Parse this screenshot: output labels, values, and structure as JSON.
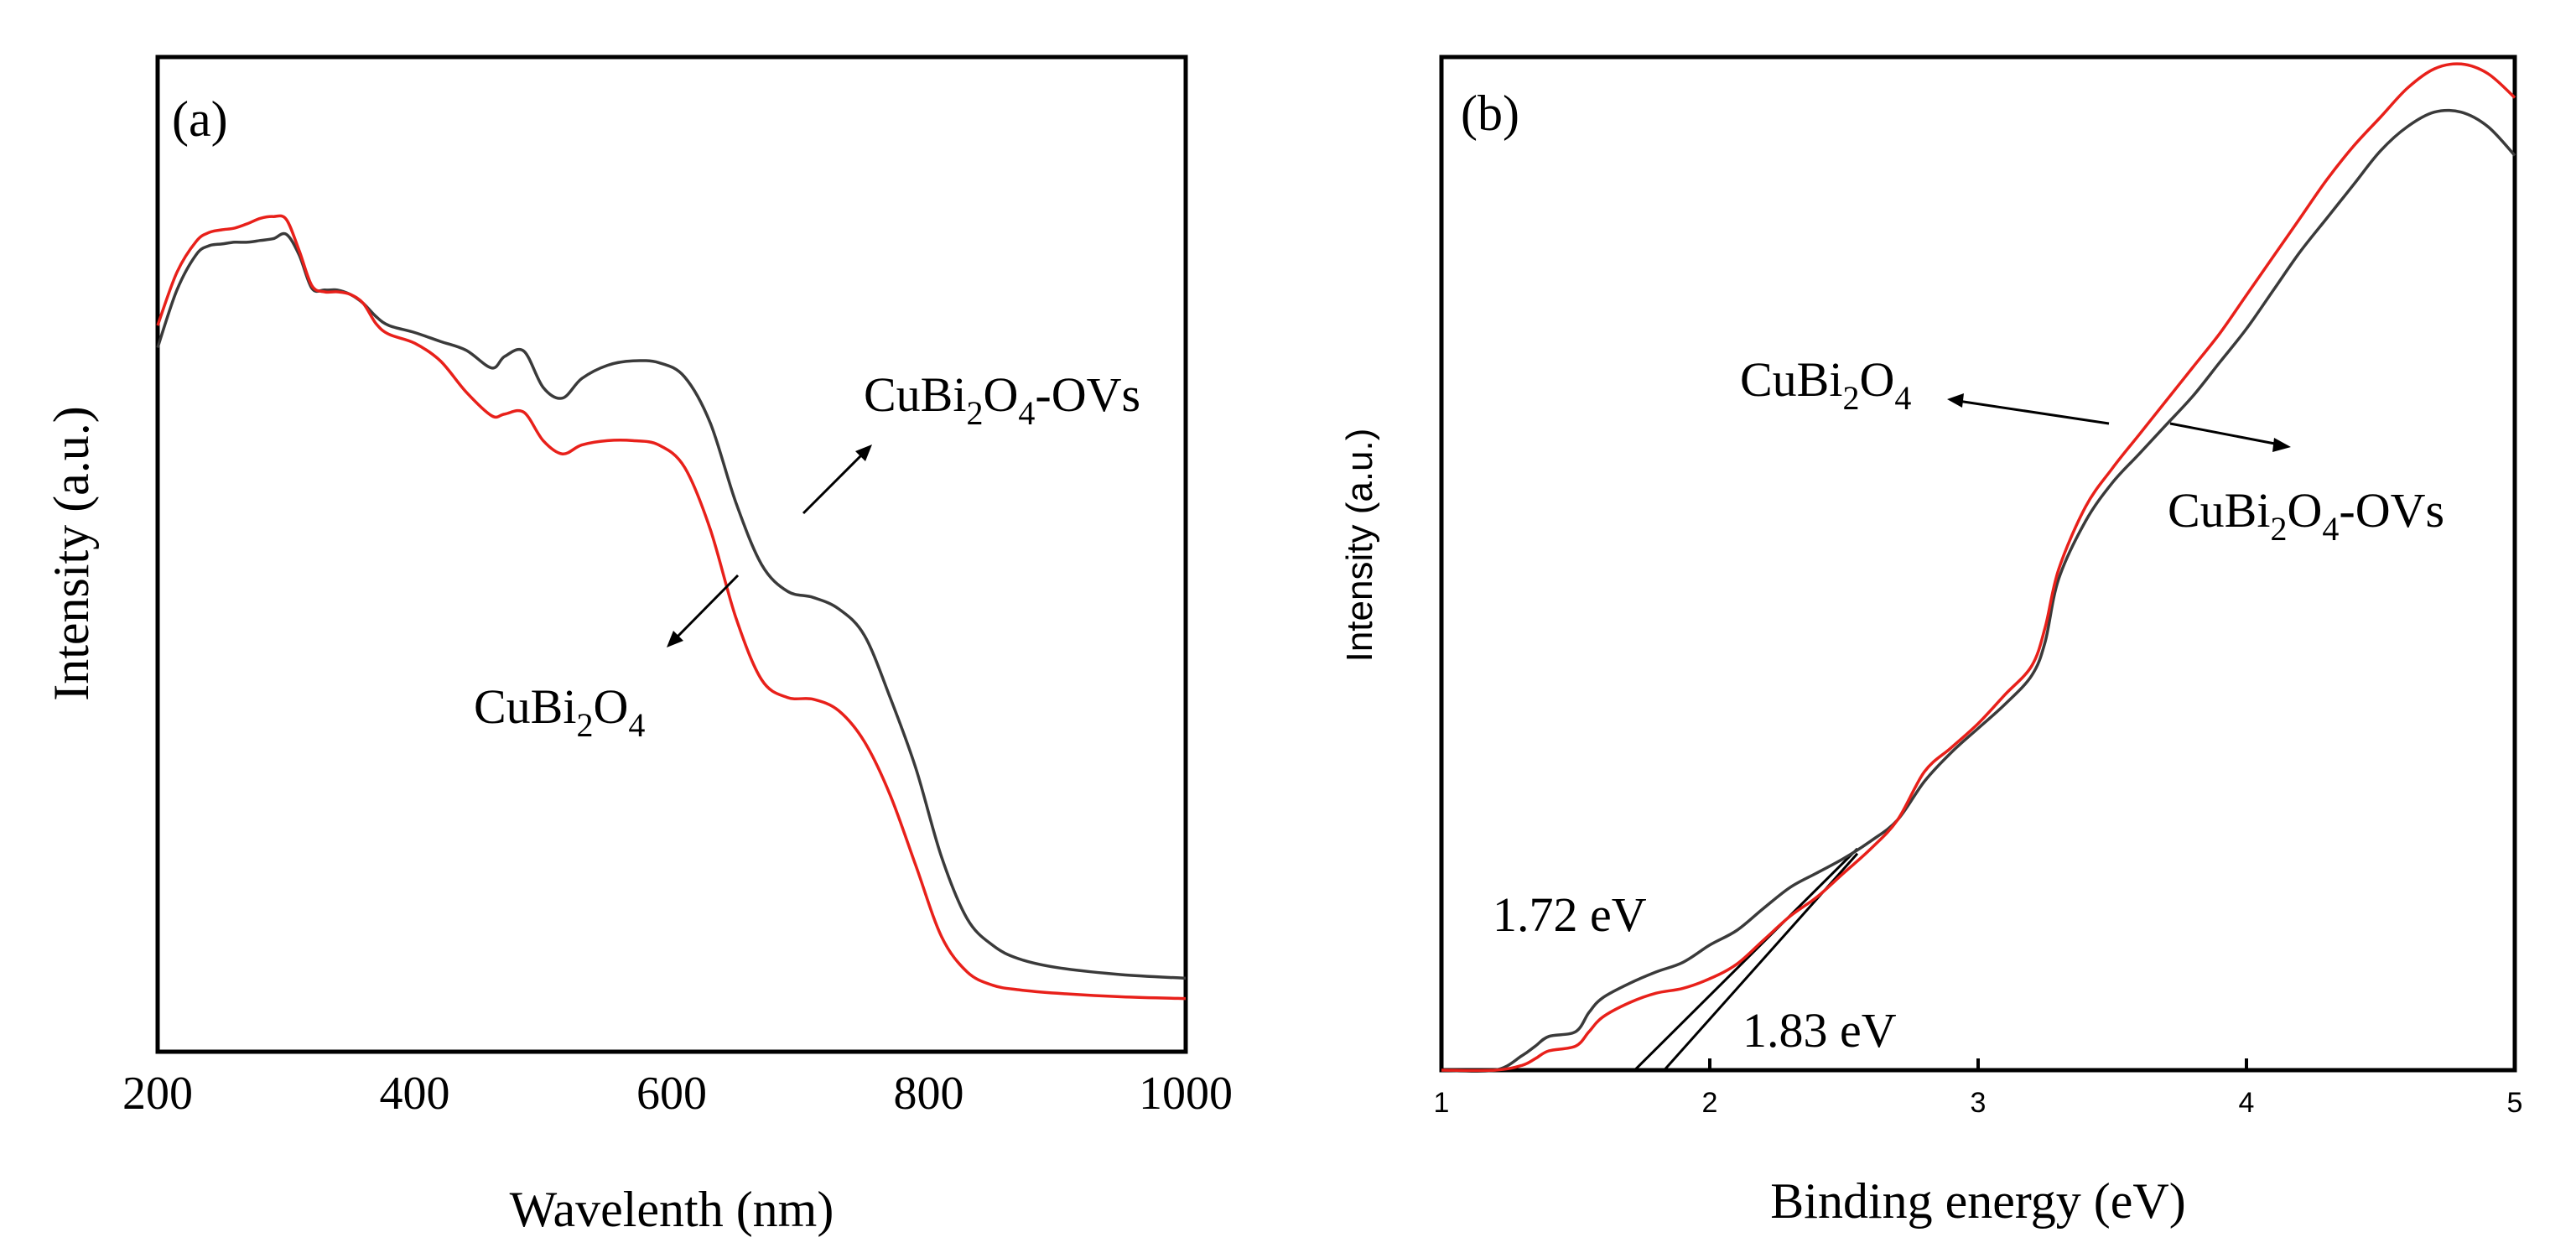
{
  "chart_data": [
    {
      "panel_label": "(a)",
      "type": "line",
      "xlabel": "Wavelenth (nm)",
      "ylabel": "Intensity (a.u.)",
      "xlim": [
        200,
        1000
      ],
      "ylim": [
        0,
        1
      ],
      "xticks": [
        200,
        400,
        600,
        800,
        1000
      ],
      "series": [
        {
          "name": "CuBi2O4-OVs",
          "color": "#3a3a3a",
          "x": [
            200,
            215,
            230,
            240,
            250,
            260,
            270,
            280,
            290,
            300,
            310,
            320,
            330,
            340,
            350,
            360,
            370,
            380,
            400,
            420,
            440,
            460,
            470,
            485,
            500,
            515,
            530,
            550,
            570,
            590,
            610,
            630,
            650,
            670,
            690,
            710,
            730,
            750,
            770,
            790,
            810,
            830,
            850,
            870,
            900,
            950,
            1000
          ],
          "y": [
            0.795,
            0.86,
            0.9,
            0.91,
            0.912,
            0.914,
            0.914,
            0.916,
            0.918,
            0.923,
            0.9,
            0.862,
            0.86,
            0.86,
            0.855,
            0.845,
            0.83,
            0.82,
            0.812,
            0.802,
            0.792,
            0.772,
            0.785,
            0.791,
            0.75,
            0.738,
            0.76,
            0.775,
            0.78,
            0.778,
            0.762,
            0.71,
            0.62,
            0.55,
            0.52,
            0.513,
            0.5,
            0.47,
            0.4,
            0.32,
            0.22,
            0.15,
            0.12,
            0.105,
            0.095,
            0.087,
            0.083
          ]
        },
        {
          "name": "CuBi2O4",
          "color": "#e8201a",
          "x": [
            200,
            215,
            230,
            240,
            250,
            260,
            270,
            280,
            290,
            300,
            310,
            320,
            330,
            340,
            350,
            360,
            370,
            380,
            400,
            420,
            440,
            460,
            470,
            485,
            500,
            515,
            530,
            550,
            570,
            590,
            610,
            630,
            650,
            670,
            690,
            710,
            730,
            750,
            770,
            790,
            810,
            830,
            850,
            870,
            900,
            950,
            1000
          ],
          "y": [
            0.82,
            0.88,
            0.915,
            0.925,
            0.928,
            0.93,
            0.935,
            0.941,
            0.943,
            0.94,
            0.905,
            0.865,
            0.858,
            0.858,
            0.855,
            0.845,
            0.822,
            0.81,
            0.8,
            0.78,
            0.745,
            0.718,
            0.72,
            0.722,
            0.69,
            0.675,
            0.685,
            0.69,
            0.69,
            0.685,
            0.66,
            0.59,
            0.49,
            0.42,
            0.4,
            0.398,
            0.385,
            0.35,
            0.29,
            0.21,
            0.13,
            0.09,
            0.075,
            0.07,
            0.066,
            0.062,
            0.06
          ]
        }
      ],
      "annotations": [
        {
          "text": "CuBi",
          "sub1": "2",
          "mid": "O",
          "sub2": "4",
          "tail": "-OVs",
          "points_to": "CuBi2O4-OVs"
        },
        {
          "text": "CuBi",
          "sub1": "2",
          "mid": "O",
          "sub2": "4",
          "tail": "",
          "points_to": "CuBi2O4"
        }
      ]
    },
    {
      "panel_label": "(b)",
      "type": "line",
      "xlabel": "Binding energy (eV)",
      "ylabel": "Intensity (a.u.)",
      "xlim": [
        1,
        5
      ],
      "ylim": [
        0,
        1
      ],
      "xticks": [
        1,
        2,
        3,
        4,
        5
      ],
      "series": [
        {
          "name": "CuBi2O4-OVs",
          "color": "#3a3a3a",
          "x": [
            1.0,
            1.2,
            1.3,
            1.35,
            1.4,
            1.5,
            1.55,
            1.6,
            1.7,
            1.8,
            1.9,
            2.0,
            2.1,
            2.2,
            2.3,
            2.4,
            2.5,
            2.6,
            2.7,
            2.8,
            2.9,
            3.0,
            3.1,
            3.2,
            3.25,
            3.3,
            3.4,
            3.5,
            3.6,
            3.7,
            3.8,
            3.9,
            4.0,
            4.1,
            4.2,
            4.3,
            4.4,
            4.5,
            4.6,
            4.7,
            4.8,
            4.9,
            5.0
          ],
          "y": [
            0.0,
            0.0,
            0.015,
            0.025,
            0.035,
            0.04,
            0.06,
            0.075,
            0.09,
            0.102,
            0.112,
            0.13,
            0.145,
            0.168,
            0.19,
            0.205,
            0.22,
            0.238,
            0.26,
            0.3,
            0.33,
            0.355,
            0.38,
            0.41,
            0.445,
            0.51,
            0.57,
            0.61,
            0.64,
            0.67,
            0.7,
            0.735,
            0.77,
            0.81,
            0.85,
            0.885,
            0.92,
            0.955,
            0.98,
            0.995,
            0.995,
            0.98,
            0.95
          ]
        },
        {
          "name": "CuBi2O4",
          "color": "#e8201a",
          "x": [
            1.0,
            1.2,
            1.3,
            1.35,
            1.4,
            1.5,
            1.55,
            1.6,
            1.7,
            1.8,
            1.9,
            2.0,
            2.1,
            2.2,
            2.3,
            2.4,
            2.5,
            2.6,
            2.7,
            2.8,
            2.9,
            3.0,
            3.1,
            3.2,
            3.25,
            3.3,
            3.4,
            3.5,
            3.6,
            3.7,
            3.8,
            3.9,
            4.0,
            4.1,
            4.2,
            4.3,
            4.4,
            4.5,
            4.6,
            4.7,
            4.8,
            4.9,
            5.0
          ],
          "y": [
            0.0,
            0.0,
            0.005,
            0.012,
            0.02,
            0.025,
            0.04,
            0.055,
            0.07,
            0.08,
            0.085,
            0.095,
            0.11,
            0.135,
            0.16,
            0.18,
            0.205,
            0.23,
            0.26,
            0.31,
            0.335,
            0.36,
            0.39,
            0.42,
            0.46,
            0.52,
            0.585,
            0.625,
            0.66,
            0.695,
            0.73,
            0.765,
            0.805,
            0.845,
            0.885,
            0.925,
            0.96,
            0.99,
            1.02,
            1.04,
            1.045,
            1.035,
            1.01
          ]
        }
      ],
      "tangents": [
        {
          "intercept": 1.72,
          "end_x": 2.55,
          "end_y": 0.23
        },
        {
          "intercept": 1.83,
          "end_x": 2.55,
          "end_y": 0.225
        }
      ],
      "bandgap_labels": [
        "1.72 eV",
        "1.83 eV"
      ],
      "annotations": [
        {
          "text": "CuBi",
          "sub1": "2",
          "mid": "O",
          "sub2": "4",
          "tail": "",
          "points_to": "CuBi2O4"
        },
        {
          "text": "CuBi",
          "sub1": "2",
          "mid": "O",
          "sub2": "4",
          "tail": "-OVs",
          "points_to": "CuBi2O4-OVs"
        }
      ]
    }
  ]
}
